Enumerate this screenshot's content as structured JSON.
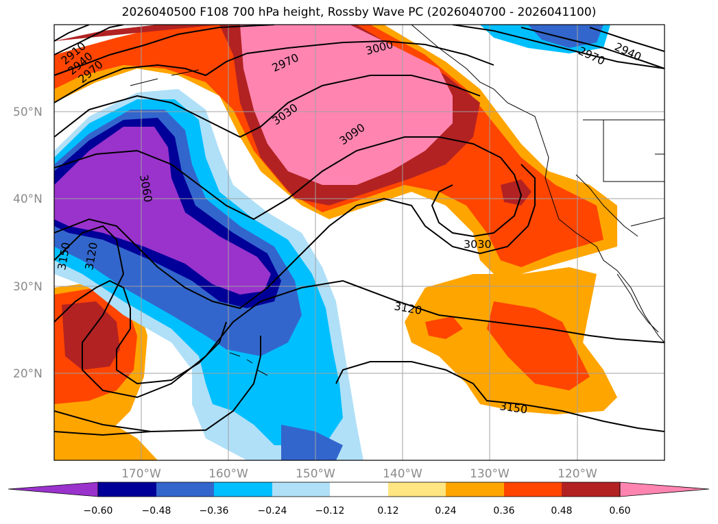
{
  "title": "2026040500 F108 700 hPa height, Rossby Wave PC (2026040700 - 2026041100)",
  "map": {
    "lon_labels": [
      "170°W",
      "160°W",
      "150°W",
      "140°W",
      "130°W",
      "120°W"
    ],
    "lat_labels": [
      "50°N",
      "40°N",
      "30°N",
      "20°N"
    ],
    "contour_labels": [
      "2910",
      "2940",
      "2970",
      "2970",
      "3000",
      "3030",
      "3090",
      "3060",
      "3120",
      "3150",
      "3030",
      "3120",
      "3150",
      "2970",
      "2940"
    ]
  },
  "colorbar": {
    "ticks": [
      "−0.60",
      "−0.48",
      "−0.36",
      "−0.24",
      "−0.12",
      "0.12",
      "0.24",
      "0.36",
      "0.48",
      "0.60"
    ],
    "colors": [
      "#9933cc",
      "#000099",
      "#3366cc",
      "#00bfff",
      "#b0e0f8",
      "#ffffff",
      "#ffe680",
      "#ffa500",
      "#ff4500",
      "#b22222",
      "#ff85b0",
      "#ff85b0"
    ]
  }
}
